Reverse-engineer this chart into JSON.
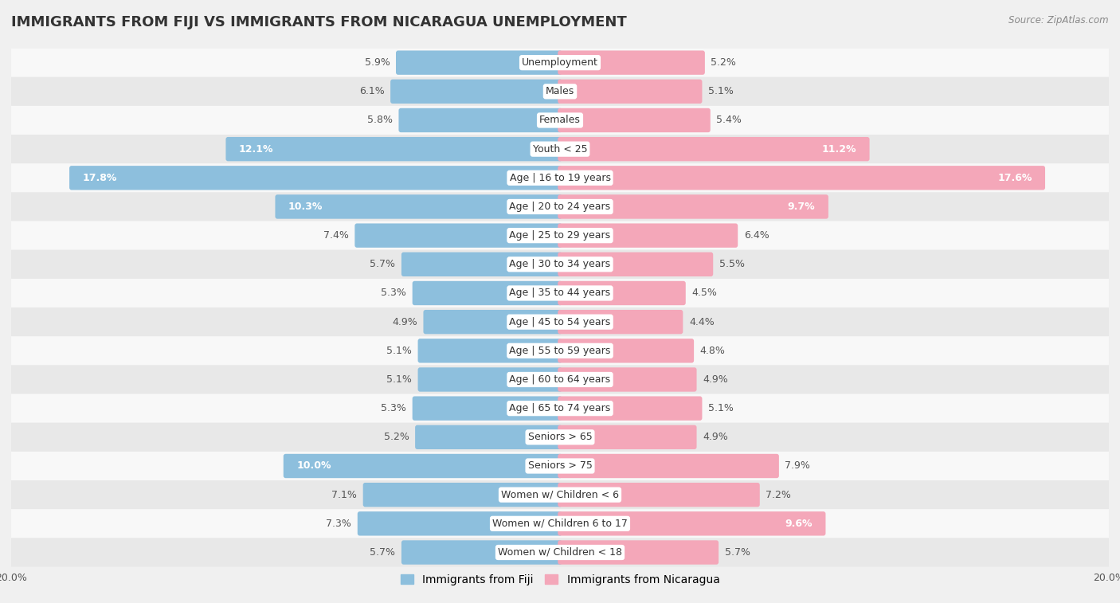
{
  "title": "IMMIGRANTS FROM FIJI VS IMMIGRANTS FROM NICARAGUA UNEMPLOYMENT",
  "source": "Source: ZipAtlas.com",
  "categories": [
    "Unemployment",
    "Males",
    "Females",
    "Youth < 25",
    "Age | 16 to 19 years",
    "Age | 20 to 24 years",
    "Age | 25 to 29 years",
    "Age | 30 to 34 years",
    "Age | 35 to 44 years",
    "Age | 45 to 54 years",
    "Age | 55 to 59 years",
    "Age | 60 to 64 years",
    "Age | 65 to 74 years",
    "Seniors > 65",
    "Seniors > 75",
    "Women w/ Children < 6",
    "Women w/ Children 6 to 17",
    "Women w/ Children < 18"
  ],
  "fiji_values": [
    5.9,
    6.1,
    5.8,
    12.1,
    17.8,
    10.3,
    7.4,
    5.7,
    5.3,
    4.9,
    5.1,
    5.1,
    5.3,
    5.2,
    10.0,
    7.1,
    7.3,
    5.7
  ],
  "nicaragua_values": [
    5.2,
    5.1,
    5.4,
    11.2,
    17.6,
    9.7,
    6.4,
    5.5,
    4.5,
    4.4,
    4.8,
    4.9,
    5.1,
    4.9,
    7.9,
    7.2,
    9.6,
    5.7
  ],
  "fiji_color": "#8dbfdd",
  "nicaragua_color": "#f4a7b9",
  "fiji_label": "Immigrants from Fiji",
  "nicaragua_label": "Immigrants from Nicaragua",
  "background_color": "#f0f0f0",
  "row_color_light": "#f8f8f8",
  "row_color_dark": "#e8e8e8",
  "max_value": 20.0,
  "bar_height": 0.68,
  "label_fontsize": 9.0,
  "value_fontsize": 9.0,
  "title_fontsize": 13,
  "white_text_threshold": 9.5
}
